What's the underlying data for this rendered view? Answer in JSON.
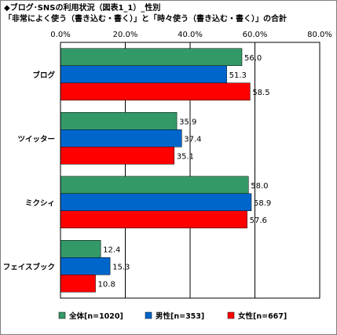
{
  "chart_data": {
    "type": "bar",
    "orientation": "horizontal",
    "title_lines": [
      "◆ブログ･SNSの利用状況（図表1_1）_性別",
      "「非常によく使う（書き込む・書く）」と「時々使う（書き込む・書く）」の合計"
    ],
    "categories": [
      "ブログ",
      "ツイッター",
      "ミクシィ",
      "フェイスブック"
    ],
    "series": [
      {
        "name": "全体[n=1020]",
        "color": "#339966",
        "values": [
          56.0,
          35.9,
          58.0,
          12.4
        ]
      },
      {
        "name": "男性[n=353]",
        "color": "#0066cc",
        "values": [
          51.3,
          37.4,
          58.9,
          15.3
        ]
      },
      {
        "name": "女性[n=667]",
        "color": "#ff0000",
        "values": [
          58.5,
          35.1,
          57.6,
          10.8
        ]
      }
    ],
    "xlim": [
      0,
      80
    ],
    "ticks": [
      0,
      20,
      40,
      60,
      80
    ],
    "tick_labels": [
      "0.0%",
      "20.0%",
      "40.0%",
      "60.0%",
      "80.0%"
    ],
    "grid": true,
    "legend_position": "bottom"
  }
}
